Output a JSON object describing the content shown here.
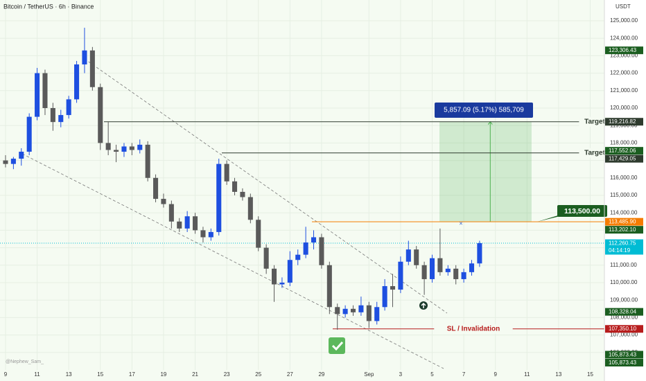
{
  "chart_data": {
    "type": "candlestick",
    "title": "Bitcoin / TetherUS · 6h · Binance",
    "currency": "USDT",
    "watermark": "@Nephew_Sam_",
    "up_color": "#1e4fe0",
    "down_color": "#5a5a5a",
    "grid": true,
    "xlim": [
      -0.35,
      37.9
    ],
    "ylim": [
      105159,
      126190
    ],
    "xticks": [
      {
        "value": 0,
        "label": "9"
      },
      {
        "value": 2,
        "label": "11"
      },
      {
        "value": 4,
        "label": "13"
      },
      {
        "value": 6,
        "label": "15"
      },
      {
        "value": 8,
        "label": "17"
      },
      {
        "value": 10,
        "label": "19"
      },
      {
        "value": 12,
        "label": "21"
      },
      {
        "value": 14,
        "label": "23"
      },
      {
        "value": 16,
        "label": "25"
      },
      {
        "value": 18,
        "label": "27"
      },
      {
        "value": 20,
        "label": "29"
      },
      {
        "value": 23,
        "label": "Sep"
      },
      {
        "value": 25,
        "label": "3"
      },
      {
        "value": 27,
        "label": "5"
      },
      {
        "value": 29,
        "label": "7"
      },
      {
        "value": 31,
        "label": "9"
      },
      {
        "value": 33,
        "label": "11"
      },
      {
        "value": 35,
        "label": "13"
      },
      {
        "value": 37,
        "label": "15"
      }
    ],
    "yticks": [
      {
        "value": 106000,
        "label": "106,000.00"
      },
      {
        "value": 107000,
        "label": "107,000.00"
      },
      {
        "value": 108000,
        "label": "108,000.00"
      },
      {
        "value": 109000,
        "label": "109,000.00"
      },
      {
        "value": 110000,
        "label": "110,000.00"
      },
      {
        "value": 111000,
        "label": "111,000.00"
      },
      {
        "value": 112000,
        "label": "112,000.00"
      },
      {
        "value": 113000,
        "label": "113,000.00"
      },
      {
        "value": 114000,
        "label": "114,000.00"
      },
      {
        "value": 115000,
        "label": "115,000.00"
      },
      {
        "value": 116000,
        "label": "116,000.00"
      },
      {
        "value": 117000,
        "label": "117,000.00"
      },
      {
        "value": 118000,
        "label": "118,000.00"
      },
      {
        "value": 119000,
        "label": "119,000.00"
      },
      {
        "value": 120000,
        "label": "120,000.00"
      },
      {
        "value": 121000,
        "label": "121,000.00"
      },
      {
        "value": 122000,
        "label": "122,000.00"
      },
      {
        "value": 123000,
        "label": "123,000.00"
      },
      {
        "value": 124000,
        "label": "124,000.00"
      },
      {
        "value": 125000,
        "label": "125,000.00"
      }
    ],
    "x": [
      0,
      0.5,
      1,
      1.5,
      2,
      2.5,
      3,
      3.5,
      4,
      4.5,
      5,
      5.5,
      6,
      6.5,
      7,
      7.5,
      8,
      8.5,
      9,
      9.5,
      10,
      10.5,
      11,
      11.5,
      12,
      12.5,
      13,
      13.5,
      14,
      14.5,
      15,
      15.5,
      16,
      16.5,
      17,
      17.5,
      18,
      18.5,
      19,
      19.5,
      20,
      20.5,
      21,
      21.5,
      22,
      22.5,
      23,
      23.5,
      24,
      24.5,
      25,
      25.5,
      26,
      26.5,
      27,
      27.5,
      28,
      28.5,
      29,
      29.5,
      30
    ],
    "open": [
      117000,
      116800,
      117100,
      117500,
      119500,
      122000,
      120000,
      119200,
      119600,
      120500,
      122500,
      123300,
      121200,
      118000,
      117600,
      117500,
      117800,
      117600,
      117900,
      116000,
      114800,
      114500,
      113500,
      113100,
      113800,
      113000,
      112600,
      112900,
      116800,
      115800,
      115200,
      114900,
      113600,
      112000,
      110800,
      109900,
      110000,
      111300,
      111600,
      112300,
      112600,
      111000,
      108600,
      108200,
      108500,
      108300,
      108700,
      107800,
      108600,
      109800,
      109600,
      111200,
      111900,
      111000,
      110200,
      111400,
      110600,
      110800,
      110200,
      110600,
      111100
    ],
    "high": [
      117300,
      117200,
      117700,
      119700,
      122300,
      122200,
      120300,
      119900,
      120700,
      122700,
      124600,
      123500,
      121400,
      119200,
      117900,
      118000,
      118000,
      118200,
      118100,
      116200,
      115100,
      114700,
      113700,
      114100,
      114000,
      113200,
      113100,
      117100,
      117000,
      116000,
      115400,
      115100,
      113800,
      112200,
      111000,
      110300,
      111800,
      111900,
      113200,
      113000,
      112800,
      111200,
      108800,
      108700,
      108700,
      109200,
      108900,
      108900,
      110200,
      110500,
      111500,
      112400,
      112100,
      111200,
      111600,
      113100,
      111000,
      111000,
      110800,
      111300,
      112400
    ],
    "low": [
      116600,
      116500,
      116700,
      117300,
      119300,
      119600,
      118700,
      118900,
      119400,
      120300,
      122000,
      121000,
      117600,
      117300,
      116900,
      117200,
      117300,
      117400,
      115800,
      114600,
      114300,
      113100,
      112900,
      112900,
      112800,
      112300,
      112400,
      112700,
      115600,
      115000,
      114700,
      113400,
      111800,
      110500,
      108900,
      109700,
      109800,
      111000,
      111400,
      111900,
      110800,
      108200,
      107300,
      108000,
      108100,
      108100,
      107400,
      107600,
      108400,
      108600,
      109400,
      111000,
      110800,
      109300,
      110000,
      110400,
      110400,
      109900,
      110000,
      110400,
      110900
    ],
    "close": [
      116800,
      117100,
      117500,
      119500,
      122000,
      120000,
      119200,
      119600,
      120500,
      122500,
      123300,
      121200,
      118000,
      117600,
      117500,
      117800,
      117600,
      117900,
      116000,
      114800,
      114500,
      113500,
      113100,
      113800,
      113000,
      112600,
      112900,
      116800,
      115800,
      115200,
      114900,
      113600,
      112000,
      110800,
      109900,
      110000,
      111300,
      111600,
      112300,
      112600,
      111000,
      108600,
      108200,
      108500,
      108300,
      108700,
      107800,
      108600,
      109800,
      109600,
      111200,
      111900,
      111000,
      110200,
      111400,
      110600,
      110800,
      110200,
      110600,
      111100,
      112260.75
    ],
    "levels": [
      {
        "text": "Target",
        "price": {
          "value": 119216.82,
          "label": "119,216.82"
        },
        "color": "#2e3b2e"
      },
      {
        "text": "Target",
        "price": {
          "value": 117429.05,
          "label": "117,429.05"
        },
        "color": "#2e3b2e"
      },
      {
        "text": "SL / Invalidation",
        "price": {
          "value": 107350.1,
          "label": "107,350.10"
        },
        "color": "#b71c1c"
      },
      {
        "text": "113,500.00",
        "price": {
          "value": 113485.9,
          "label": "113,485.90"
        },
        "color": "#f57c00"
      }
    ],
    "price_tags": [
      {
        "value": 123306.43,
        "label": "123,306.43",
        "color": "#1b5e20"
      },
      {
        "value": 117552.06,
        "label": "117,552.06",
        "color": "#1b5e20"
      },
      {
        "value": 113202.1,
        "label": "113,202.10",
        "color": "#1b5e20"
      },
      {
        "value": 108328.04,
        "label": "108,328.04",
        "color": "#1b5e20"
      },
      {
        "value": 105873.43,
        "label": "105,873.43",
        "color": "#1b5e20"
      },
      {
        "value": 105873.43,
        "label": "105,873.43",
        "color": "#1b5e20"
      }
    ],
    "current_price": {
      "value": 112260.75,
      "label": "112,260.75",
      "countdown": "04:14:19",
      "color": "#00bcd4"
    },
    "target_box": {
      "x": [
        27.46,
        33.29
      ],
      "y": [
        113485.9,
        119216.82
      ],
      "color": "#4caf50"
    },
    "measure": "5,857.09 (5.17%) 585,709"
  }
}
